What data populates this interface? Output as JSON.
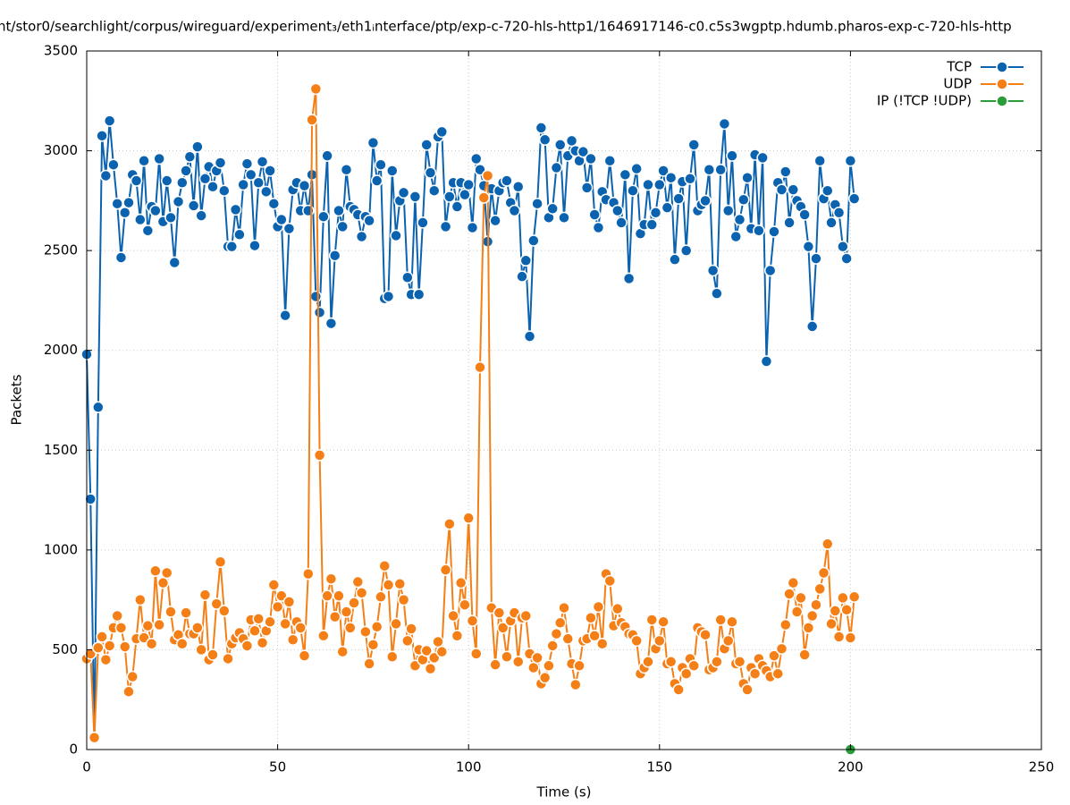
{
  "chart_data": {
    "type": "line",
    "title": "nt/stor0/searchlight/corpus/wireguard/experiment₃/eth1ᵢnterface/ptp/exp-c-720-hls-http1/1646917146-c0.c5s3wgptp.hdumb.pharos-exp-c-720-hls-http",
    "x_label": "Time (s)",
    "y_label": "Packets",
    "xlim": [
      0,
      250
    ],
    "ylim": [
      0,
      3500
    ],
    "xticks": [
      0,
      50,
      100,
      150,
      200,
      250
    ],
    "yticks": [
      0,
      500,
      1000,
      1500,
      2000,
      2500,
      3000,
      3500
    ],
    "grid": true,
    "legend": "top-right",
    "x": [
      0,
      1,
      2,
      3,
      4,
      5,
      6,
      7,
      8,
      9,
      10,
      11,
      12,
      13,
      14,
      15,
      16,
      17,
      18,
      19,
      20,
      21,
      22,
      23,
      24,
      25,
      26,
      27,
      28,
      29,
      30,
      31,
      32,
      33,
      34,
      35,
      36,
      37,
      38,
      39,
      40,
      41,
      42,
      43,
      44,
      45,
      46,
      47,
      48,
      49,
      50,
      51,
      52,
      53,
      54,
      55,
      56,
      57,
      58,
      59,
      60,
      61,
      62,
      63,
      64,
      65,
      66,
      67,
      68,
      69,
      70,
      71,
      72,
      73,
      74,
      75,
      76,
      77,
      78,
      79,
      80,
      81,
      82,
      83,
      84,
      85,
      86,
      87,
      88,
      89,
      90,
      91,
      92,
      93,
      94,
      95,
      96,
      97,
      98,
      99,
      100,
      101,
      102,
      103,
      104,
      105,
      106,
      107,
      108,
      109,
      110,
      111,
      112,
      113,
      114,
      115,
      116,
      117,
      118,
      119,
      120,
      121,
      122,
      123,
      124,
      125,
      126,
      127,
      128,
      129,
      130,
      131,
      132,
      133,
      134,
      135,
      136,
      137,
      138,
      139,
      140,
      141,
      142,
      143,
      144,
      145,
      146,
      147,
      148,
      149,
      150,
      151,
      152,
      153,
      154,
      155,
      156,
      157,
      158,
      159,
      160,
      161,
      162,
      163,
      164,
      165,
      166,
      167,
      168,
      169,
      170,
      171,
      172,
      173,
      174,
      175,
      176,
      177,
      178,
      179,
      180,
      181,
      182,
      183,
      184,
      185,
      186,
      187,
      188,
      189,
      190,
      191,
      192,
      193,
      194,
      195,
      196,
      197,
      198,
      199,
      200,
      201
    ],
    "series": [
      {
        "name": "TCP",
        "color": "#0b63b0",
        "values": [
          1980,
          1255,
          60,
          1715,
          3075,
          2875,
          3150,
          2930,
          2735,
          2465,
          2690,
          2740,
          2880,
          2850,
          2655,
          2950,
          2600,
          2720,
          2700,
          2960,
          2645,
          2850,
          2665,
          2440,
          2745,
          2840,
          2900,
          2970,
          2725,
          3020,
          2675,
          2860,
          2920,
          2820,
          2900,
          2940,
          2800,
          2520,
          2520,
          2705,
          2580,
          2830,
          2935,
          2880,
          2525,
          2840,
          2945,
          2795,
          2900,
          2735,
          2620,
          2655,
          2175,
          2610,
          2805,
          2840,
          2700,
          2825,
          2700,
          2880,
          2270,
          2190,
          2670,
          2975,
          2135,
          2475,
          2700,
          2620,
          2905,
          2720,
          2705,
          2680,
          2570,
          2670,
          2650,
          3040,
          2850,
          2930,
          2260,
          2270,
          2900,
          2575,
          2750,
          2790,
          2365,
          2280,
          2770,
          2280,
          2640,
          3030,
          2890,
          2800,
          3070,
          3095,
          2620,
          2770,
          2840,
          2720,
          2840,
          2780,
          2830,
          2615,
          2960,
          2905,
          2825,
          2545,
          2810,
          2650,
          2800,
          2840,
          2850,
          2740,
          2700,
          2820,
          2370,
          2450,
          2070,
          2550,
          2735,
          3115,
          3055,
          2665,
          2710,
          2915,
          3030,
          2665,
          2975,
          3050,
          3000,
          2950,
          2995,
          2815,
          2960,
          2680,
          2615,
          2795,
          2755,
          2950,
          2740,
          2700,
          2640,
          2880,
          2360,
          2800,
          2910,
          2585,
          2630,
          2830,
          2630,
          2690,
          2830,
          2900,
          2715,
          2865,
          2455,
          2760,
          2845,
          2500,
          2860,
          3030,
          2700,
          2730,
          2750,
          2905,
          2400,
          2285,
          2905,
          3135,
          2700,
          2975,
          2570,
          2655,
          2755,
          2865,
          2610,
          2980,
          2600,
          2965,
          1945,
          2400,
          2595,
          2840,
          2805,
          2895,
          2640,
          2805,
          2750,
          2720,
          2680,
          2520,
          2120,
          2460,
          2950,
          2760,
          2800,
          2640,
          2730,
          2690,
          2520,
          2460,
          2950,
          2760
        ]
      },
      {
        "name": "UDP",
        "color": "#f57f17",
        "values": [
          455,
          480,
          60,
          510,
          565,
          450,
          520,
          610,
          670,
          610,
          515,
          290,
          365,
          555,
          750,
          560,
          620,
          530,
          895,
          625,
          835,
          885,
          690,
          550,
          575,
          530,
          685,
          580,
          580,
          610,
          500,
          775,
          450,
          475,
          730,
          940,
          695,
          455,
          530,
          560,
          585,
          555,
          520,
          650,
          595,
          655,
          535,
          595,
          640,
          825,
          715,
          770,
          630,
          740,
          550,
          640,
          610,
          470,
          880,
          3155,
          3310,
          1475,
          570,
          770,
          855,
          665,
          770,
          490,
          690,
          610,
          735,
          840,
          785,
          590,
          430,
          525,
          615,
          765,
          920,
          825,
          465,
          630,
          830,
          750,
          545,
          605,
          420,
          500,
          450,
          495,
          405,
          460,
          540,
          490,
          900,
          1130,
          670,
          570,
          835,
          725,
          1160,
          645,
          480,
          1915,
          2765,
          2875,
          710,
          425,
          685,
          610,
          465,
          645,
          685,
          440,
          660,
          670,
          480,
          410,
          460,
          330,
          360,
          420,
          520,
          580,
          635,
          710,
          555,
          430,
          325,
          420,
          545,
          555,
          660,
          570,
          715,
          530,
          880,
          845,
          620,
          705,
          635,
          615,
          580,
          575,
          545,
          380,
          410,
          440,
          650,
          505,
          545,
          640,
          430,
          440,
          330,
          300,
          410,
          380,
          455,
          420,
          610,
          590,
          575,
          400,
          410,
          440,
          650,
          505,
          545,
          640,
          430,
          440,
          330,
          300,
          410,
          380,
          455,
          420,
          395,
          365,
          470,
          380,
          505,
          625,
          780,
          835,
          690,
          760,
          475,
          610,
          670,
          725,
          805,
          885,
          1030,
          630,
          695,
          565,
          760,
          700,
          560,
          765
        ]
      },
      {
        "name": "IP (!TCP  !UDP)",
        "color": "#2a9d3a",
        "x": [
          200
        ],
        "values": [
          0
        ]
      }
    ]
  }
}
